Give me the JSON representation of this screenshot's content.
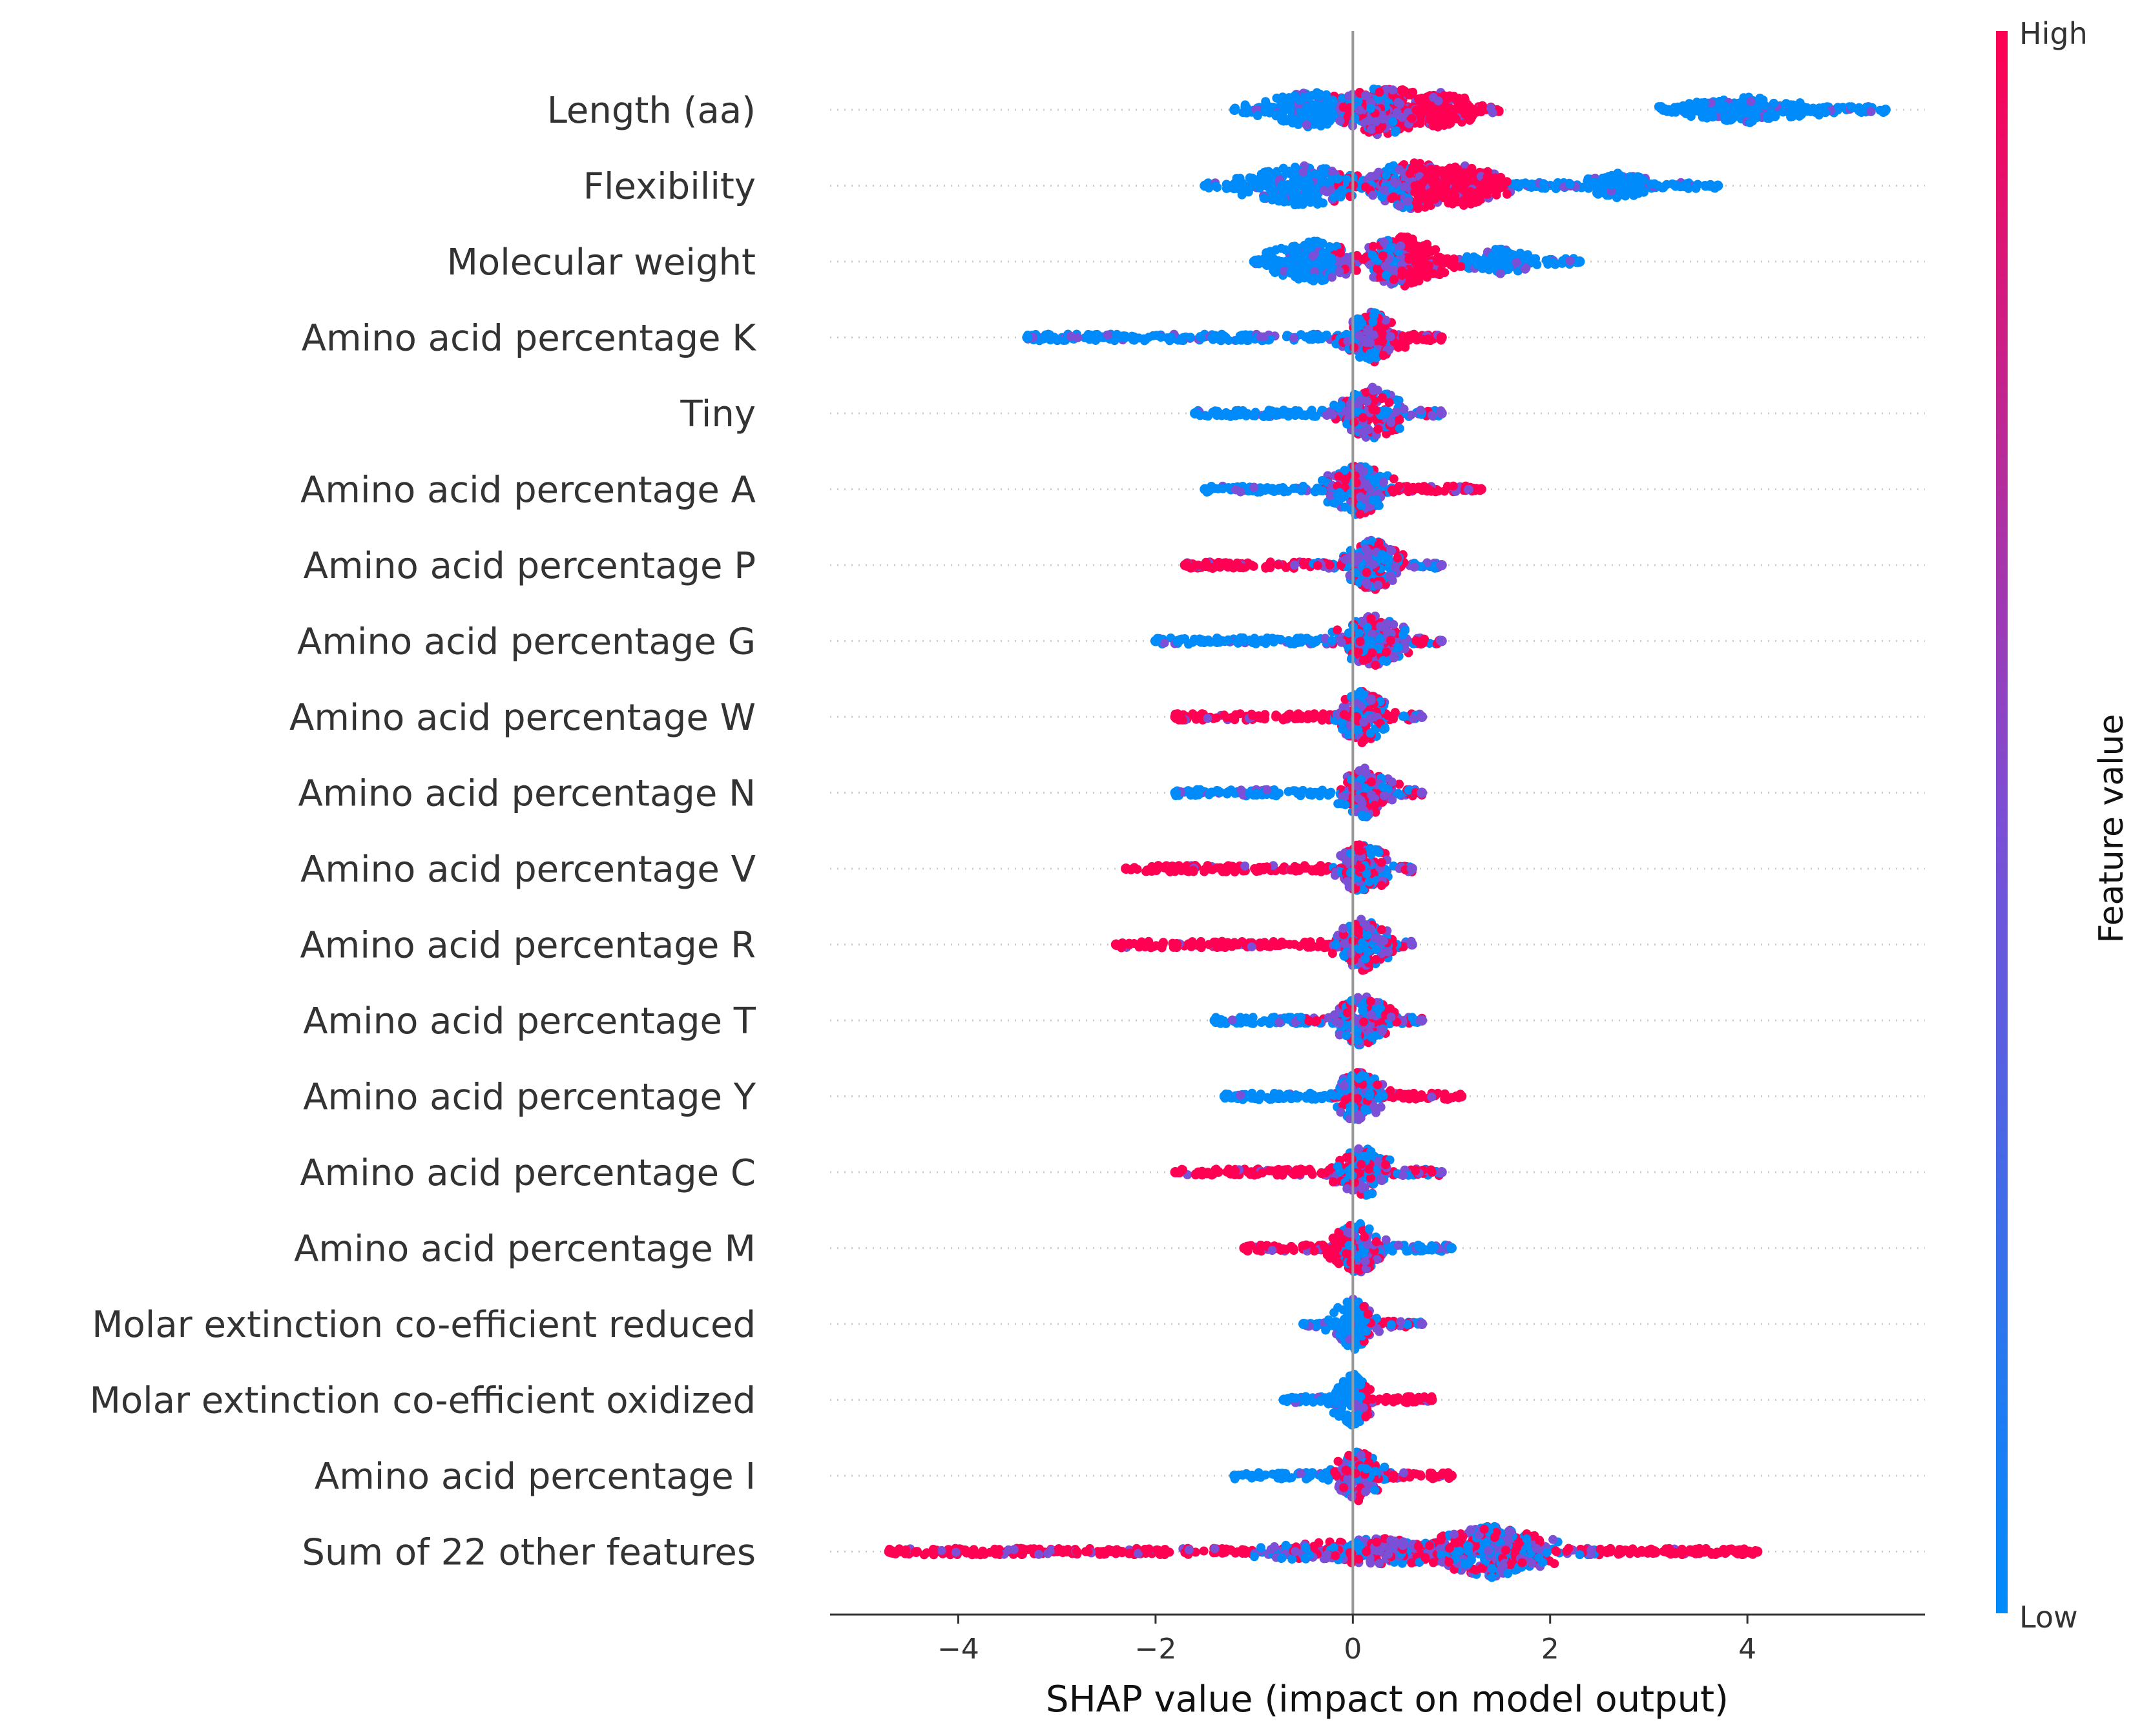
{
  "chart_data": {
    "type": "scatter",
    "subtype": "shap-beeswarm-summary",
    "title": "",
    "xlabel": "SHAP value (impact on model output)",
    "ylabel": "",
    "xlim": [
      -5.3,
      5.8
    ],
    "xticks": [
      -4,
      -2,
      0,
      2,
      4
    ],
    "xtick_labels": [
      "−4",
      "−2",
      "0",
      "2",
      "4"
    ],
    "grid": false,
    "colorbar": {
      "title": "Feature value",
      "high_label": "High",
      "low_label": "Low",
      "high_color": "#ff0052",
      "low_color": "#008bfb",
      "mid_color": "#7b4fd6"
    },
    "features": [
      {
        "name": "Length (aa)",
        "min": -1.2,
        "max": 5.4,
        "segments": [
          {
            "from": -1.2,
            "to": -0.2,
            "color": "low"
          },
          {
            "from": -0.2,
            "to": 0.5,
            "color": "mix"
          },
          {
            "from": 0.5,
            "to": 1.5,
            "color": "high"
          },
          {
            "from": 3.1,
            "to": 5.4,
            "color": "low"
          }
        ],
        "clusters": [
          {
            "center": -0.4,
            "width": 0.8,
            "height": 0.7
          },
          {
            "center": 0.3,
            "width": 0.7,
            "height": 1.0
          },
          {
            "center": 0.9,
            "width": 0.5,
            "height": 0.7
          },
          {
            "center": 4.0,
            "width": 0.9,
            "height": 0.5
          }
        ]
      },
      {
        "name": "Flexibility",
        "min": -1.5,
        "max": 3.7,
        "segments": [
          {
            "from": -1.5,
            "to": -0.3,
            "color": "low"
          },
          {
            "from": -0.3,
            "to": 0.6,
            "color": "mix"
          },
          {
            "from": 0.6,
            "to": 1.6,
            "color": "high"
          },
          {
            "from": 1.6,
            "to": 3.7,
            "color": "low"
          }
        ],
        "clusters": [
          {
            "center": -0.5,
            "width": 0.9,
            "height": 0.8
          },
          {
            "center": 0.6,
            "width": 0.6,
            "height": 1.0
          },
          {
            "center": 1.1,
            "width": 0.6,
            "height": 0.8
          },
          {
            "center": 2.7,
            "width": 0.5,
            "height": 0.5
          }
        ]
      },
      {
        "name": "Molecular weight",
        "min": -1.0,
        "max": 2.3,
        "segments": [
          {
            "from": -1.0,
            "to": -0.2,
            "color": "low"
          },
          {
            "from": -0.2,
            "to": 0.5,
            "color": "mix"
          },
          {
            "from": 0.5,
            "to": 1.1,
            "color": "high"
          },
          {
            "from": 1.1,
            "to": 2.3,
            "color": "low"
          }
        ],
        "clusters": [
          {
            "center": -0.4,
            "width": 0.7,
            "height": 0.8
          },
          {
            "center": 0.5,
            "width": 0.6,
            "height": 1.0
          },
          {
            "center": 1.5,
            "width": 0.5,
            "height": 0.5
          }
        ]
      },
      {
        "name": "Amino acid percentage K",
        "min": -3.3,
        "max": 0.9,
        "segments": [
          {
            "from": -3.3,
            "to": -0.2,
            "color": "low"
          },
          {
            "from": -0.2,
            "to": 0.4,
            "color": "mix"
          },
          {
            "from": 0.4,
            "to": 0.9,
            "color": "high"
          }
        ],
        "clusters": [
          {
            "center": 0.2,
            "width": 0.4,
            "height": 1.0
          }
        ]
      },
      {
        "name": "Tiny",
        "min": -1.6,
        "max": 0.9,
        "segments": [
          {
            "from": -1.6,
            "to": -0.3,
            "color": "low"
          },
          {
            "from": -0.3,
            "to": 0.9,
            "color": "mix"
          }
        ],
        "clusters": [
          {
            "center": 0.2,
            "width": 0.5,
            "height": 1.0
          }
        ]
      },
      {
        "name": "Amino acid percentage A",
        "min": -1.5,
        "max": 1.3,
        "segments": [
          {
            "from": -1.5,
            "to": -0.3,
            "color": "low"
          },
          {
            "from": -0.3,
            "to": 0.4,
            "color": "mix"
          },
          {
            "from": 0.4,
            "to": 1.3,
            "color": "high"
          }
        ],
        "clusters": [
          {
            "center": 0.05,
            "width": 0.5,
            "height": 1.0
          }
        ]
      },
      {
        "name": "Amino acid percentage P",
        "min": -1.7,
        "max": 0.9,
        "segments": [
          {
            "from": -1.7,
            "to": -0.4,
            "color": "high"
          },
          {
            "from": -0.4,
            "to": 0.9,
            "color": "mix"
          }
        ],
        "clusters": [
          {
            "center": 0.2,
            "width": 0.4,
            "height": 1.0
          }
        ]
      },
      {
        "name": "Amino acid percentage G",
        "min": -2.0,
        "max": 0.9,
        "segments": [
          {
            "from": -2.0,
            "to": -0.3,
            "color": "low"
          },
          {
            "from": -0.3,
            "to": 0.9,
            "color": "mix"
          }
        ],
        "clusters": [
          {
            "center": 0.2,
            "width": 0.5,
            "height": 1.0
          }
        ]
      },
      {
        "name": "Amino acid percentage W",
        "min": -1.8,
        "max": 0.7,
        "segments": [
          {
            "from": -1.8,
            "to": -0.2,
            "color": "high"
          },
          {
            "from": -0.2,
            "to": 0.7,
            "color": "mix"
          }
        ],
        "clusters": [
          {
            "center": 0.1,
            "width": 0.4,
            "height": 1.0
          }
        ]
      },
      {
        "name": "Amino acid percentage N",
        "min": -1.8,
        "max": 0.7,
        "segments": [
          {
            "from": -1.8,
            "to": -0.2,
            "color": "low"
          },
          {
            "from": -0.2,
            "to": 0.7,
            "color": "mix"
          }
        ],
        "clusters": [
          {
            "center": 0.15,
            "width": 0.4,
            "height": 1.0
          }
        ]
      },
      {
        "name": "Amino acid percentage V",
        "min": -2.3,
        "max": 0.6,
        "segments": [
          {
            "from": -2.3,
            "to": -0.2,
            "color": "high"
          },
          {
            "from": -0.2,
            "to": 0.6,
            "color": "mix"
          }
        ],
        "clusters": [
          {
            "center": 0.1,
            "width": 0.4,
            "height": 1.0
          }
        ]
      },
      {
        "name": "Amino acid percentage R",
        "min": -2.4,
        "max": 0.6,
        "segments": [
          {
            "from": -2.4,
            "to": -0.2,
            "color": "high"
          },
          {
            "from": -0.2,
            "to": 0.6,
            "color": "mix"
          }
        ],
        "clusters": [
          {
            "center": 0.1,
            "width": 0.4,
            "height": 1.0
          }
        ]
      },
      {
        "name": "Amino acid percentage T",
        "min": -1.4,
        "max": 0.7,
        "segments": [
          {
            "from": -1.4,
            "to": -0.6,
            "color": "low"
          },
          {
            "from": -0.6,
            "to": 0.7,
            "color": "mix"
          }
        ],
        "clusters": [
          {
            "center": 0.1,
            "width": 0.4,
            "height": 1.0
          }
        ]
      },
      {
        "name": "Amino acid percentage Y",
        "min": -1.3,
        "max": 1.1,
        "segments": [
          {
            "from": -1.3,
            "to": -0.2,
            "color": "low"
          },
          {
            "from": -0.2,
            "to": 0.4,
            "color": "mix"
          },
          {
            "from": 0.4,
            "to": 1.1,
            "color": "high"
          }
        ],
        "clusters": [
          {
            "center": 0.05,
            "width": 0.4,
            "height": 1.0
          }
        ]
      },
      {
        "name": "Amino acid percentage C",
        "min": -1.8,
        "max": 0.9,
        "segments": [
          {
            "from": -1.8,
            "to": -0.2,
            "color": "high"
          },
          {
            "from": -0.2,
            "to": 0.9,
            "color": "mix"
          }
        ],
        "clusters": [
          {
            "center": 0.1,
            "width": 0.4,
            "height": 1.0
          }
        ]
      },
      {
        "name": "Amino acid percentage M",
        "min": -1.1,
        "max": 1.0,
        "segments": [
          {
            "from": -1.1,
            "to": -0.1,
            "color": "high"
          },
          {
            "from": -0.1,
            "to": 0.3,
            "color": "mix"
          },
          {
            "from": 0.3,
            "to": 1.0,
            "color": "low"
          }
        ],
        "clusters": [
          {
            "center": 0.05,
            "width": 0.4,
            "height": 1.0
          }
        ]
      },
      {
        "name": "Molar extinction co-efficient reduced",
        "min": -0.5,
        "max": 0.7,
        "segments": [
          {
            "from": -0.5,
            "to": 0.1,
            "color": "low"
          },
          {
            "from": 0.1,
            "to": 0.7,
            "color": "mix"
          }
        ],
        "clusters": [
          {
            "center": 0.0,
            "width": 0.3,
            "height": 1.0
          }
        ]
      },
      {
        "name": "Molar extinction co-efficient oxidized",
        "min": -0.7,
        "max": 0.8,
        "segments": [
          {
            "from": -0.7,
            "to": 0.1,
            "color": "low"
          },
          {
            "from": 0.1,
            "to": 0.8,
            "color": "high"
          }
        ],
        "clusters": [
          {
            "center": 0.0,
            "width": 0.3,
            "height": 1.0
          }
        ]
      },
      {
        "name": "Amino acid percentage I",
        "min": -1.2,
        "max": 1.0,
        "segments": [
          {
            "from": -1.2,
            "to": -0.2,
            "color": "low"
          },
          {
            "from": -0.2,
            "to": 0.4,
            "color": "mix"
          },
          {
            "from": 0.4,
            "to": 1.0,
            "color": "high"
          }
        ],
        "clusters": [
          {
            "center": 0.05,
            "width": 0.35,
            "height": 1.0
          }
        ]
      },
      {
        "name": "Sum of 22 other features",
        "min": -4.7,
        "max": 4.1,
        "segments": [
          {
            "from": -4.7,
            "to": -1.0,
            "color": "high"
          },
          {
            "from": -1.0,
            "to": 0.5,
            "color": "mix"
          },
          {
            "from": 0.5,
            "to": 2.5,
            "color": "mix"
          },
          {
            "from": 2.5,
            "to": 4.1,
            "color": "high"
          }
        ],
        "clusters": [
          {
            "center": 0.3,
            "width": 1.6,
            "height": 0.5
          },
          {
            "center": 1.4,
            "width": 0.9,
            "height": 1.0
          }
        ]
      }
    ]
  }
}
